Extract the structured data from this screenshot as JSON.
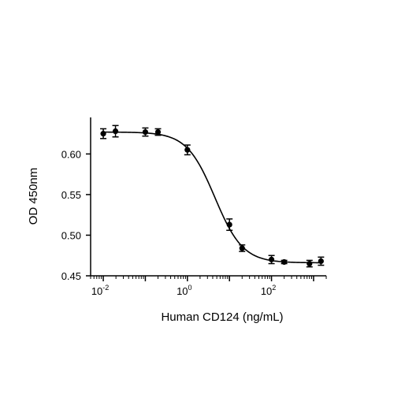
{
  "chart_data": {
    "type": "scatter",
    "xlabel": "Human CD124 (ng/mL)",
    "ylabel": "OD 450nm",
    "x_scale": "log10",
    "xlim": [
      0.005,
      2000
    ],
    "ylim": [
      0.45,
      0.645
    ],
    "x_ticks": [
      {
        "value": 0.01,
        "base": "10",
        "exp": "-2"
      },
      {
        "value": 1,
        "base": "10",
        "exp": "0"
      },
      {
        "value": 100,
        "base": "10",
        "exp": "2"
      }
    ],
    "y_ticks": [
      {
        "value": 0.45,
        "label": "0.45"
      },
      {
        "value": 0.5,
        "label": "0.50"
      },
      {
        "value": 0.55,
        "label": "0.55"
      },
      {
        "value": 0.6,
        "label": "0.60"
      }
    ],
    "grid": false,
    "legend": "none",
    "colors": {
      "marker": "#000000",
      "line": "#000000"
    },
    "series": [
      {
        "points": [
          {
            "x": 0.01,
            "y": 0.625,
            "err": 0.006
          },
          {
            "x": 0.0195,
            "y": 0.628,
            "err": 0.007
          },
          {
            "x": 0.1,
            "y": 0.627,
            "err": 0.005
          },
          {
            "x": 0.2,
            "y": 0.627,
            "err": 0.004
          },
          {
            "x": 1.0,
            "y": 0.605,
            "err": 0.006
          },
          {
            "x": 10,
            "y": 0.513,
            "err": 0.007
          },
          {
            "x": 20,
            "y": 0.484,
            "err": 0.004
          },
          {
            "x": 100,
            "y": 0.47,
            "err": 0.005
          },
          {
            "x": 200,
            "y": 0.467,
            "err": 0.002
          },
          {
            "x": 800,
            "y": 0.465,
            "err": 0.004
          },
          {
            "x": 1500,
            "y": 0.468,
            "err": 0.005
          }
        ],
        "fit": {
          "model": "4PL",
          "top": 0.627,
          "bottom": 0.466,
          "ec50": 4.5,
          "hill": 1.3
        }
      }
    ]
  }
}
